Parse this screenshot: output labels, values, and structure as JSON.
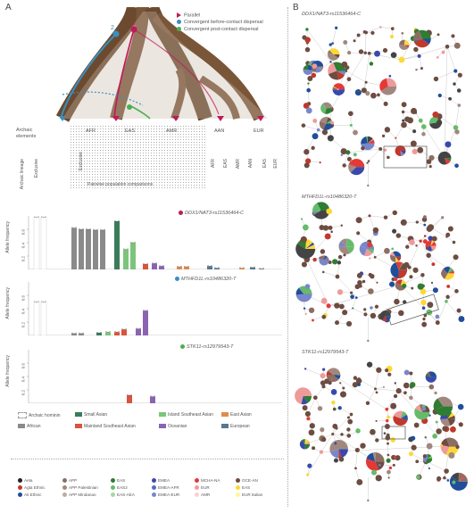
{
  "panels": {
    "a": "A",
    "b": "B"
  },
  "tree_legend": [
    {
      "label": "Parallel",
      "color": "#c2185b",
      "kind": "arrow"
    },
    {
      "label": "Convergent before-contact dispersal",
      "color": "#3a8fc1",
      "kind": "dot"
    },
    {
      "label": "Convergent post-contact dispersal",
      "color": "#4caf50",
      "kind": "dot"
    }
  ],
  "tree_numbers": [
    "1",
    "2"
  ],
  "table": {
    "row_header": "Archaic\nelements",
    "col_groups": [
      "AFR",
      "EAS",
      "AMR",
      "AAN",
      "EUR"
    ],
    "col_sub_labels": [
      "Archaic lineage",
      "Exclusive",
      "Exclusive",
      "AFR",
      "EAS",
      "AMR",
      "AAN",
      "EAS",
      "EUR"
    ],
    "footer": "Pairwise population comparisons"
  },
  "chart_data": [
    {
      "type": "bar",
      "title": "DDX1/NAT3-rs11536464-C",
      "ylabel": "Allele frequency",
      "yticks": [
        "0.2",
        "0.4",
        "0.6"
      ],
      "ylim": [
        0,
        0.8
      ],
      "values": [
        0.78,
        0.78,
        0.62,
        0.6,
        0.6,
        0.59,
        0.59,
        0.72,
        0.3,
        0.4,
        0.08,
        0.09,
        0.05,
        0.04,
        0.04,
        0.05,
        0.02,
        0.02,
        0.03,
        0.01
      ]
    },
    {
      "type": "bar",
      "title": "MTHFD1L-rs10486320-T",
      "ylabel": "Allele frequency",
      "yticks": [
        "0.2",
        "0.4",
        "0.6"
      ],
      "ylim": [
        0,
        0.8
      ],
      "values": [
        0.5,
        0.5,
        0.03,
        0.03,
        0.04,
        0.05,
        0.05,
        0.09,
        0.1,
        0.37
      ]
    },
    {
      "type": "bar",
      "title": "STK11-rs12979543-T",
      "ylabel": "Allele frequency",
      "yticks": [
        "0.2",
        "0.4",
        "0.6"
      ],
      "ylim": [
        0,
        0.8
      ],
      "values": [
        0.12,
        0.1
      ]
    }
  ],
  "category_legend": [
    {
      "label": "Archaic hominin",
      "color": "#ffffff",
      "border": "#999"
    },
    {
      "label": "Small Asian",
      "color": "#3a7d5a"
    },
    {
      "label": "Island Southeast Asian",
      "color": "#7cc47c"
    },
    {
      "label": "East Asian",
      "color": "#e08c4a"
    },
    {
      "label": "African",
      "color": "#8a8a8a"
    },
    {
      "label": "Mainland Southeast Asian",
      "color": "#d9533f"
    },
    {
      "label": "Oceanian",
      "color": "#8a63b3"
    },
    {
      "label": "European",
      "color": "#557890"
    }
  ],
  "population_legend": [
    {
      "label": "Aeta",
      "color": "#222222"
    },
    {
      "label": "Agta Ethnic",
      "color": "#c0392b"
    },
    {
      "label": "Ati Ethnic",
      "color": "#1f4e9a"
    },
    {
      "label": "APP",
      "color": "#8d6e63"
    },
    {
      "label": "APP Palestinian",
      "color": "#a1887f"
    },
    {
      "label": "APP Mindanao",
      "color": "#bcaaa4"
    },
    {
      "label": "EAS",
      "color": "#2e7d32"
    },
    {
      "label": "EAS2",
      "color": "#66bb6a"
    },
    {
      "label": "EAS-AEA",
      "color": "#a5d6a7"
    },
    {
      "label": "EMEA",
      "color": "#3949ab"
    },
    {
      "label": "EMEA-AFR",
      "color": "#5c6bc0"
    },
    {
      "label": "EMEA-EUR",
      "color": "#7986cb"
    },
    {
      "label": "MCHA-NA",
      "color": "#e53935"
    },
    {
      "label": "EUR",
      "color": "#ef9a9a"
    },
    {
      "label": "AMR",
      "color": "#ffcdd2"
    },
    {
      "label": "OCE-AN",
      "color": "#6d4c41"
    },
    {
      "label": "EAS",
      "color": "#fdd835"
    },
    {
      "label": "EUR Italian",
      "color": "#fff59d"
    }
  ],
  "networks": [
    {
      "title": "DDX1/NAT3-rs11536464-C"
    },
    {
      "title": "MTHFD1L-rs10486320-T"
    },
    {
      "title": "STK11-rs12979543-T"
    }
  ]
}
